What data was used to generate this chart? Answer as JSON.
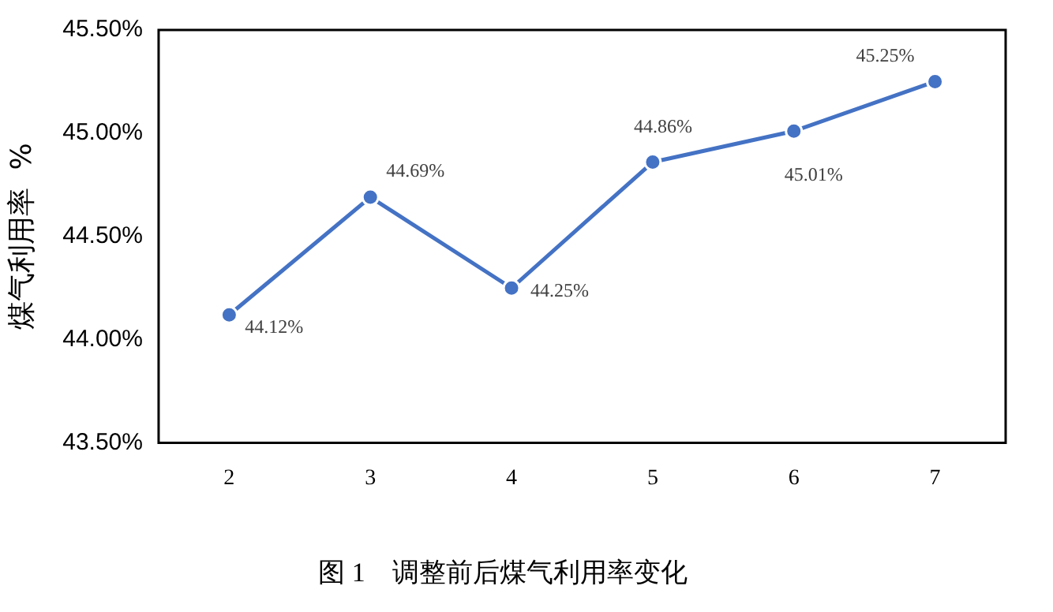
{
  "chart_data": {
    "type": "line",
    "title": "图 1　调整前后煤气利用率变化",
    "ylabel": "煤气利用率  %",
    "categories": [
      "2",
      "3",
      "4",
      "5",
      "6",
      "7"
    ],
    "series": [
      {
        "color": "#4472c4",
        "values": [
          44.12,
          44.69,
          44.25,
          44.86,
          45.01,
          45.25
        ],
        "value_labels": [
          "44.12%",
          "44.69%",
          "44.25%",
          "44.86%",
          "45.01%",
          "45.25%"
        ]
      }
    ],
    "ylim": [
      43.5,
      45.5
    ],
    "yticks": [
      {
        "value": 43.5,
        "label": "43.50%"
      },
      {
        "value": 44,
        "label": "44.00%"
      },
      {
        "value": 44.5,
        "label": "44.50%"
      },
      {
        "value": 45,
        "label": "45.00%"
      },
      {
        "value": 45.5,
        "label": "45.50%"
      }
    ],
    "grid": false,
    "legend": false,
    "marker": "circle",
    "line_style": "solid"
  }
}
